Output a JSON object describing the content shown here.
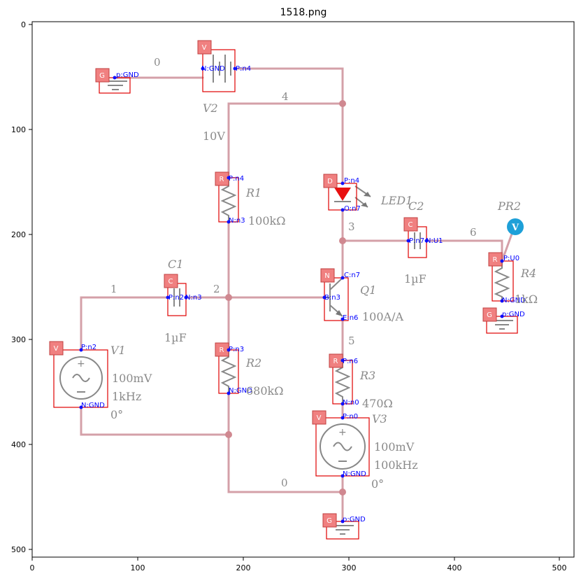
{
  "title": "1518.png",
  "axes": {
    "x_ticks": [
      "0",
      "100",
      "200",
      "300",
      "400",
      "500"
    ],
    "y_ticks": [
      "0",
      "100",
      "200",
      "300",
      "400",
      "500"
    ]
  },
  "net_labels": [
    "0",
    "4",
    "1",
    "2",
    "3",
    "6",
    "5",
    "0"
  ],
  "components": [
    {
      "tag": "V",
      "name": "V2",
      "values": [
        "10V"
      ],
      "pins": [
        "N:GND",
        "P:n4"
      ]
    },
    {
      "tag": "G",
      "name": "",
      "values": [],
      "pins": [
        "p:GND"
      ]
    },
    {
      "tag": "R",
      "name": "R1",
      "values": [
        "100kΩ"
      ],
      "pins": [
        "P:n4",
        "N:n3"
      ]
    },
    {
      "tag": "D",
      "name": "LED1",
      "values": [],
      "pins": [
        "P:n4",
        "O:n7"
      ]
    },
    {
      "tag": "C",
      "name": "C2",
      "values": [
        "1µF"
      ],
      "pins": [
        "P:n7",
        "N:U1"
      ]
    },
    {
      "tag": "R",
      "name": "R4",
      "values": [
        "1kΩ"
      ],
      "pins": [
        "P:U0",
        "N:GND"
      ]
    },
    {
      "tag": "G",
      "name": "",
      "values": [],
      "pins": [
        "p:GND"
      ]
    },
    {
      "tag": "C",
      "name": "C1",
      "values": [
        "1µF"
      ],
      "pins": [
        "P:n2",
        "N:n3"
      ]
    },
    {
      "tag": "N",
      "name": "Q1",
      "values": [
        "100A/A"
      ],
      "pins": [
        "C:n7",
        "B:n3",
        "E:n6"
      ]
    },
    {
      "tag": "V",
      "name": "V1",
      "values": [
        "100mV",
        "1kHz",
        "0°"
      ],
      "pins": [
        "P:n2",
        "N:GND"
      ]
    },
    {
      "tag": "R",
      "name": "R2",
      "values": [
        "680kΩ"
      ],
      "pins": [
        "P:n3",
        "N:GND"
      ]
    },
    {
      "tag": "R",
      "name": "R3",
      "values": [
        "470Ω"
      ],
      "pins": [
        "P:n6",
        "N:n0"
      ]
    },
    {
      "tag": "V",
      "name": "V3",
      "values": [
        "100mV",
        "100kHz",
        "0°"
      ],
      "pins": [
        "P:n0",
        "N:GND"
      ]
    },
    {
      "tag": "G",
      "name": "",
      "values": [],
      "pins": [
        "p:GND"
      ]
    }
  ],
  "probe": {
    "name": "PR2",
    "symbol": "V"
  },
  "colors": {
    "wire": "#d4a0a8",
    "box": "#e00000",
    "pin": "#1010ff",
    "probe": "#1ea0d8"
  }
}
